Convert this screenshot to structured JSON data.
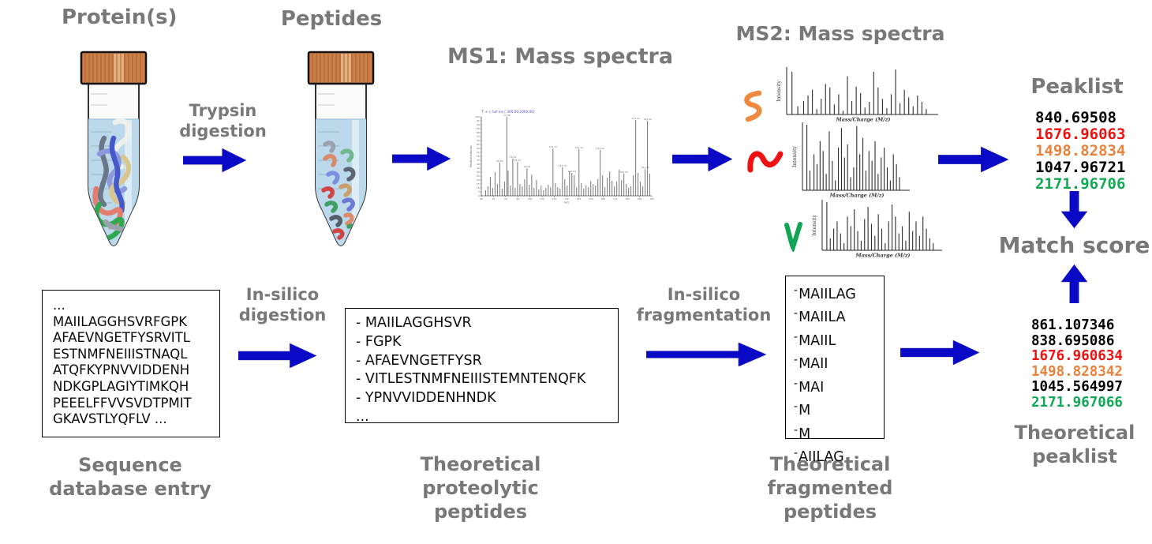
{
  "labels": {
    "protein": "Protein(s)",
    "peptides": "Peptides",
    "trypsin": "Trypsin\ndigestion",
    "ms1_title": "MS1: Mass spectra",
    "ms2_title": "MS2: Mass spectra",
    "peaklist_title": "Peaklist",
    "match_score": "Match score",
    "sequence_db": "Sequence\ndatabase entry",
    "insilico_digestion": "In-silico\ndigestion",
    "proteolytic": "Theoretical\nproteolytic\npeptides",
    "insilico_fragmentation": "In-silico\nfragmentation",
    "fragmented": "Theoretical\nfragmented\npeptides",
    "theoretical_peaklist": "Theoretical\npeaklist"
  },
  "peaklist": {
    "values": [
      {
        "value": "840.69508",
        "color": "#000000"
      },
      {
        "value": "1676.96063",
        "color": "#ee1111"
      },
      {
        "value": "1498.82834",
        "color": "#e8823c"
      },
      {
        "value": "1047.96721",
        "color": "#000000"
      },
      {
        "value": "2171.96706",
        "color": "#0fa956"
      }
    ]
  },
  "theoretical_peaklist": {
    "values": [
      {
        "value": "861.107346",
        "color": "#000000"
      },
      {
        "value": "838.695086",
        "color": "#000000"
      },
      {
        "value": "1676.960634",
        "color": "#ee1111"
      },
      {
        "value": "1498.828342",
        "color": "#e8823c"
      },
      {
        "value": "1045.564997",
        "color": "#000000"
      },
      {
        "value": "2171.967066",
        "color": "#0fa956"
      }
    ]
  },
  "sequence_box": {
    "lines": [
      "...",
      "MAIILAGGHSVRFGPK",
      "AFAEVNGETFYSRVITL",
      "ESTNMFNEIIISTNAQL",
      "ATQFKYPNVVIDDENH",
      "NDKGPLAGIYTIMKQH",
      "PEEELFFVVSVDTPMIT",
      "GKAVSTLYQFLV ..."
    ]
  },
  "proteolytic_box": {
    "lines": [
      "- MAIILAGGHSVR",
      "- FGPK",
      "- AFAEVNGETFYSR",
      "- VITLESTNMFNEIIISTEMNTENQFK",
      "- YPNVVIDDENHNDK",
      "..."
    ]
  },
  "fragmented_box": {
    "lines": [
      "-MAIILAG",
      "-MAIILA",
      "-MAIIL",
      "-MAII",
      "-MAI",
      "-M",
      "-M",
      "-AIILAG"
    ]
  },
  "chart_data": {
    "type": "bar",
    "note": "decorative mass spectra; relative peak positions (x 0-100) and heights (0-100)",
    "ms1": {
      "header": "T: + c Full ms [ 300.00-2000.00]",
      "xlabel": "m/z",
      "ylabel": "Relative Intensity",
      "peaks": [
        [
          2,
          7
        ],
        [
          3.4,
          12
        ],
        [
          4.8,
          24
        ],
        [
          6.2,
          10
        ],
        [
          7.6,
          30
        ],
        [
          9,
          15
        ],
        [
          10.4,
          42,
          "66.06"
        ],
        [
          11.8,
          9
        ],
        [
          13.2,
          18
        ],
        [
          14.6,
          100,
          "72.08"
        ],
        [
          15.4,
          32
        ],
        [
          16.8,
          13
        ],
        [
          18.2,
          47,
          "79.92"
        ],
        [
          19.6,
          10
        ],
        [
          21,
          43,
          "82.05"
        ],
        [
          22.4,
          15
        ],
        [
          23.8,
          12
        ],
        [
          25.2,
          21
        ],
        [
          26.6,
          35,
          "90.08"
        ],
        [
          28,
          14
        ],
        [
          29.4,
          27
        ],
        [
          30.8,
          10
        ],
        [
          32.2,
          20
        ],
        [
          33.6,
          8
        ],
        [
          35,
          13
        ],
        [
          36.4,
          7
        ],
        [
          37.8,
          10
        ],
        [
          39.2,
          14
        ],
        [
          40.6,
          11
        ],
        [
          42,
          60,
          "132.73"
        ],
        [
          43.4,
          16
        ],
        [
          44.8,
          11
        ],
        [
          46.2,
          9
        ],
        [
          47.6,
          36,
          "134.75"
        ],
        [
          49,
          21
        ],
        [
          50.4,
          13
        ],
        [
          51.8,
          31
        ],
        [
          53.2,
          29,
          "141.03"
        ],
        [
          54.6,
          26
        ],
        [
          56,
          11
        ],
        [
          57.4,
          59,
          "151.14"
        ],
        [
          58.8,
          16
        ],
        [
          60.2,
          9
        ],
        [
          61.6,
          13
        ],
        [
          63,
          11
        ],
        [
          64.4,
          19
        ],
        [
          65.8,
          15
        ],
        [
          67.2,
          13
        ],
        [
          68.6,
          21
        ],
        [
          70,
          58,
          "161.02"
        ],
        [
          71.4,
          26
        ],
        [
          72.8,
          11
        ],
        [
          74.2,
          23
        ],
        [
          75.6,
          31
        ],
        [
          77,
          19
        ],
        [
          78.4,
          12
        ],
        [
          79.8,
          18
        ],
        [
          81.2,
          33
        ],
        [
          82.6,
          20
        ],
        [
          84,
          28,
          "180.54"
        ],
        [
          85.4,
          15
        ],
        [
          86.8,
          10
        ],
        [
          88.2,
          12
        ],
        [
          89.6,
          26
        ],
        [
          91,
          96,
          "191.02"
        ],
        [
          92.4,
          29
        ],
        [
          93.8,
          18
        ],
        [
          95.2,
          12
        ],
        [
          96.6,
          34,
          "193.22"
        ],
        [
          98,
          95,
          "195.02"
        ],
        [
          99.2,
          28
        ]
      ]
    },
    "ms2": {
      "xlabel": "Mass/Charge (M/z)",
      "ylabel": "Intensity",
      "s1": [
        [
          2,
          95
        ],
        [
          6,
          18
        ],
        [
          10,
          30
        ],
        [
          13,
          42
        ],
        [
          16,
          55
        ],
        [
          19,
          12
        ],
        [
          22,
          35
        ],
        [
          25,
          68
        ],
        [
          28,
          60
        ],
        [
          31,
          22
        ],
        [
          34,
          45
        ],
        [
          37,
          8
        ],
        [
          40,
          85
        ],
        [
          43,
          30
        ],
        [
          46,
          62
        ],
        [
          49,
          48
        ],
        [
          52,
          15
        ],
        [
          55,
          28
        ],
        [
          58,
          95
        ],
        [
          61,
          60
        ],
        [
          64,
          35
        ],
        [
          67,
          14
        ],
        [
          70,
          45
        ],
        [
          73,
          100
        ],
        [
          76,
          25
        ],
        [
          79,
          55
        ],
        [
          82,
          38
        ],
        [
          85,
          18
        ],
        [
          88,
          42
        ],
        [
          91,
          28
        ],
        [
          94,
          12
        ]
      ],
      "s2": [
        [
          2,
          100
        ],
        [
          5,
          30
        ],
        [
          9,
          55
        ],
        [
          12,
          40
        ],
        [
          15,
          75
        ],
        [
          18,
          60
        ],
        [
          21,
          25
        ],
        [
          24,
          90
        ],
        [
          27,
          45
        ],
        [
          30,
          15
        ],
        [
          33,
          65
        ],
        [
          36,
          95
        ],
        [
          39,
          50
        ],
        [
          42,
          70
        ],
        [
          45,
          20
        ],
        [
          48,
          35
        ],
        [
          51,
          98
        ],
        [
          54,
          55
        ],
        [
          57,
          80
        ],
        [
          60,
          30
        ],
        [
          63,
          60
        ],
        [
          66,
          45
        ],
        [
          69,
          75
        ],
        [
          72,
          25
        ],
        [
          75,
          50
        ],
        [
          78,
          65
        ],
        [
          81,
          35
        ],
        [
          84,
          15
        ],
        [
          87,
          55
        ],
        [
          90,
          40
        ],
        [
          93,
          20
        ]
      ],
      "s3": [
        [
          2,
          100
        ],
        [
          5,
          25
        ],
        [
          8,
          45
        ],
        [
          11,
          60
        ],
        [
          14,
          35
        ],
        [
          17,
          15
        ],
        [
          20,
          70
        ],
        [
          23,
          50
        ],
        [
          26,
          85
        ],
        [
          29,
          40
        ],
        [
          32,
          20
        ],
        [
          35,
          65
        ],
        [
          38,
          90
        ],
        [
          41,
          55
        ],
        [
          44,
          30
        ],
        [
          47,
          75
        ],
        [
          50,
          45
        ],
        [
          53,
          15
        ],
        [
          56,
          60
        ],
        [
          59,
          95
        ],
        [
          62,
          70
        ],
        [
          65,
          35
        ],
        [
          68,
          50
        ],
        [
          71,
          20
        ],
        [
          74,
          80
        ],
        [
          77,
          40
        ],
        [
          80,
          60
        ],
        [
          83,
          30
        ],
        [
          86,
          70
        ],
        [
          89,
          45
        ],
        [
          92,
          25
        ],
        [
          95,
          15
        ]
      ]
    }
  },
  "colors": {
    "arrow_blue": "#0a0ac6",
    "label_gray": "#787878",
    "peak_red": "#ee1111",
    "peak_orange": "#e8823c",
    "peak_green": "#0fa956",
    "tube_cap": "#cb7f47",
    "tube_liquid": "#bcd9eb"
  }
}
